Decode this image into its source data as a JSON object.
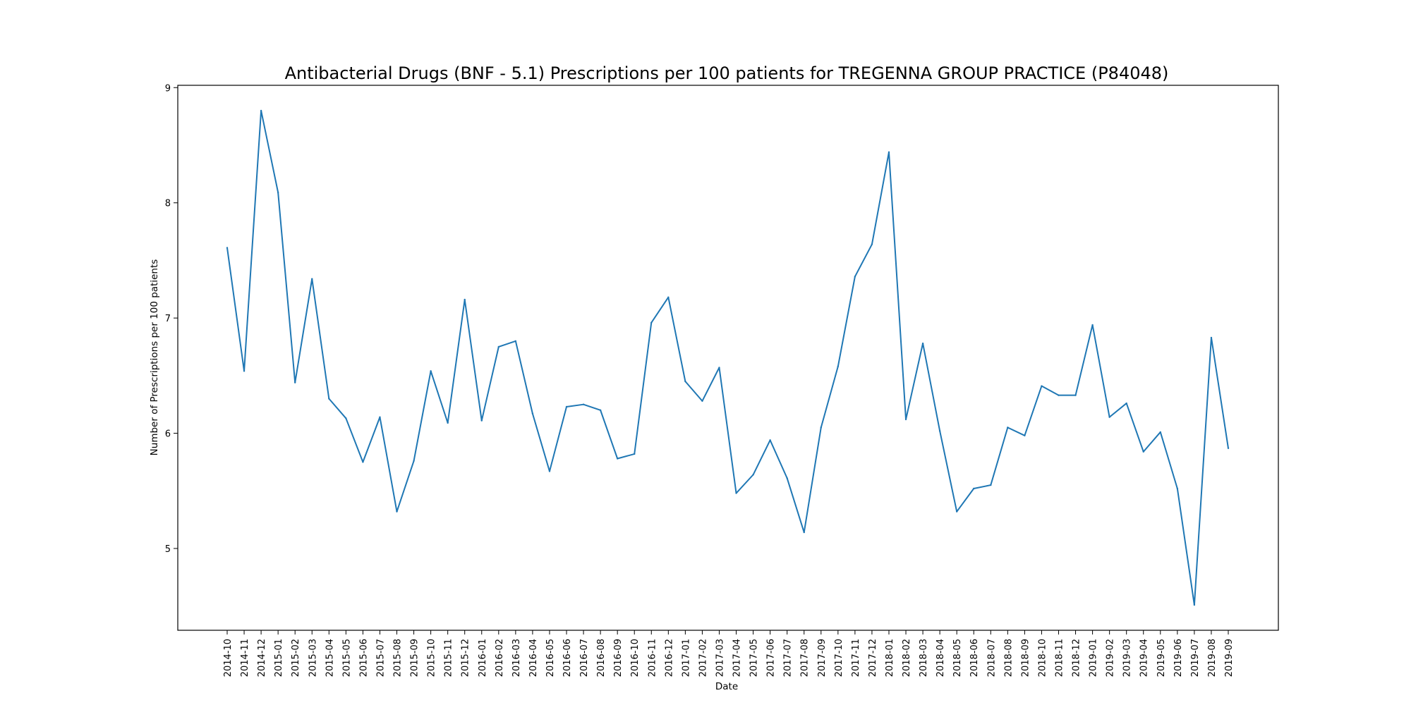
{
  "chart_data": {
    "type": "line",
    "title": "Antibacterial Drugs (BNF - 5.1) Prescriptions per 100 patients for TREGENNA GROUP PRACTICE (P84048)",
    "xlabel": "Date",
    "ylabel": "Number of Prescriptions per 100 patients",
    "ylim": [
      4.29,
      9.02
    ],
    "yticks": [
      5,
      6,
      7,
      8,
      9
    ],
    "grid": false,
    "legend": "none",
    "line_color": "#1f77b4",
    "x": [
      "2014-10",
      "2014-11",
      "2014-12",
      "2015-01",
      "2015-02",
      "2015-03",
      "2015-04",
      "2015-05",
      "2015-06",
      "2015-07",
      "2015-08",
      "2015-09",
      "2015-10",
      "2015-11",
      "2015-12",
      "2016-01",
      "2016-02",
      "2016-03",
      "2016-04",
      "2016-05",
      "2016-06",
      "2016-07",
      "2016-08",
      "2016-09",
      "2016-10",
      "2016-11",
      "2016-12",
      "2017-01",
      "2017-02",
      "2017-03",
      "2017-04",
      "2017-05",
      "2017-06",
      "2017-07",
      "2017-08",
      "2017-09",
      "2017-10",
      "2017-11",
      "2017-12",
      "2018-01",
      "2018-02",
      "2018-03",
      "2018-04",
      "2018-05",
      "2018-06",
      "2018-07",
      "2018-08",
      "2018-09",
      "2018-10",
      "2018-11",
      "2018-12",
      "2019-01",
      "2019-02",
      "2019-03",
      "2019-04",
      "2019-05",
      "2019-06",
      "2019-07",
      "2019-08",
      "2019-09"
    ],
    "series": [
      {
        "values": [
          7.61,
          6.54,
          8.8,
          8.09,
          6.44,
          7.34,
          6.3,
          6.13,
          5.75,
          6.14,
          5.32,
          5.76,
          6.54,
          6.09,
          7.16,
          6.11,
          6.75,
          6.8,
          6.17,
          5.67,
          6.23,
          6.25,
          6.2,
          5.78,
          5.82,
          6.96,
          7.18,
          6.45,
          6.28,
          6.57,
          5.48,
          5.64,
          5.94,
          5.61,
          5.14,
          6.05,
          6.58,
          7.36,
          7.64,
          8.44,
          6.12,
          6.78,
          6.02,
          5.32,
          5.52,
          5.55,
          6.05,
          5.98,
          6.41,
          6.33,
          6.33,
          6.94,
          6.14,
          6.26,
          5.84,
          6.01,
          5.52,
          4.51,
          6.83,
          5.87
        ]
      }
    ]
  }
}
